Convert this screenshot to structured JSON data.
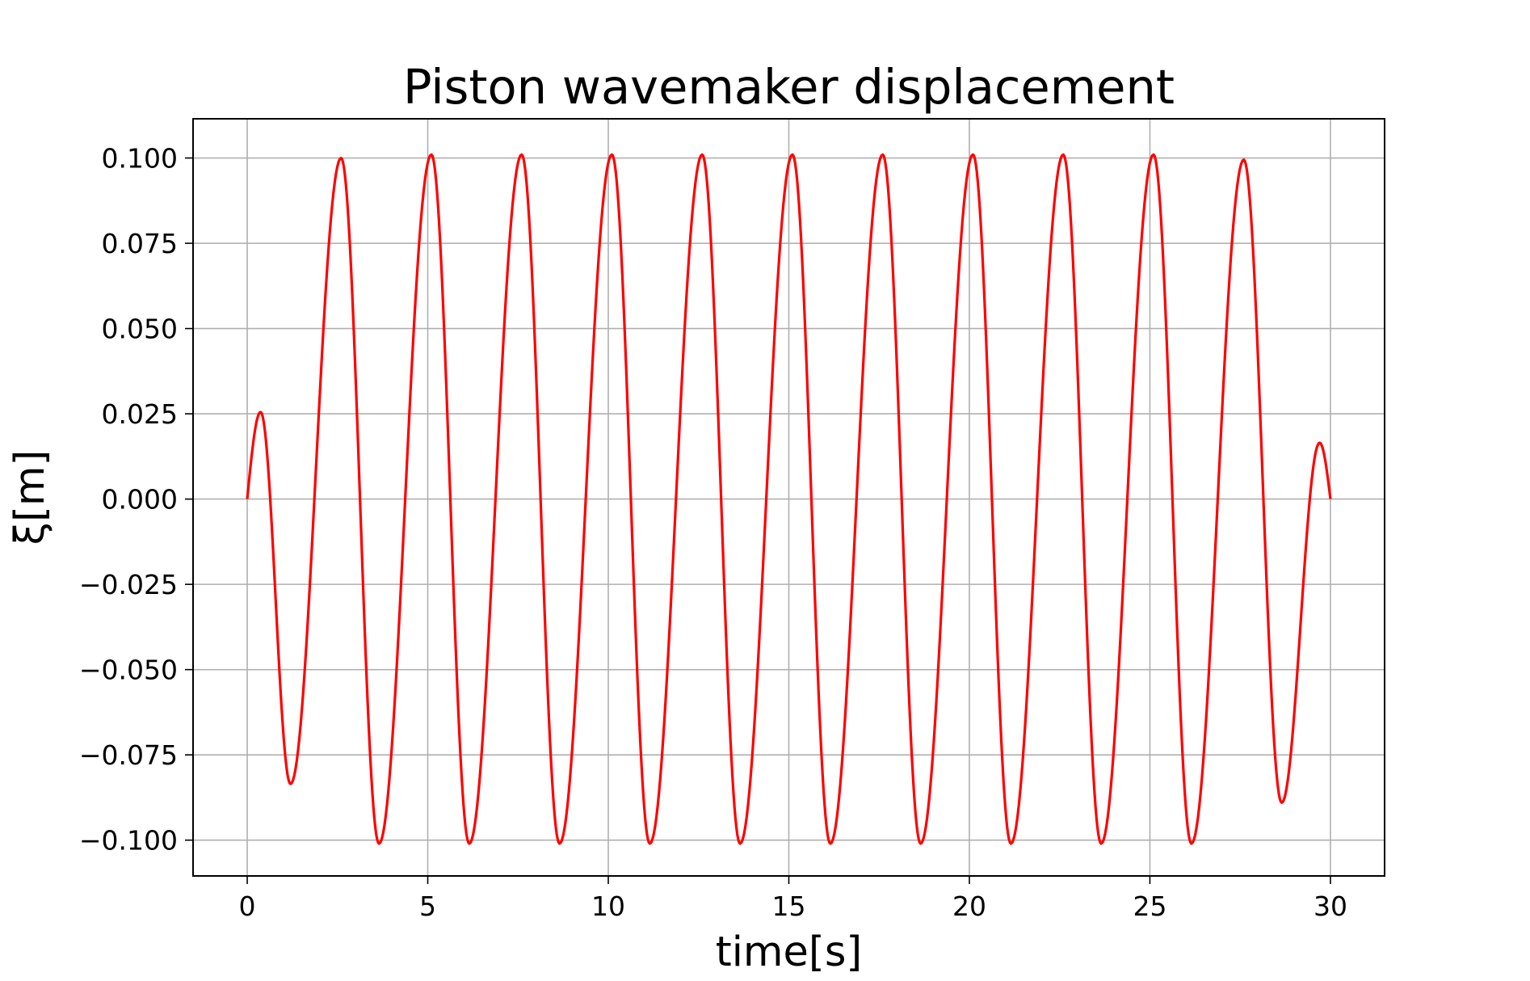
{
  "chart_data": {
    "type": "line",
    "title": "Piston wavemaker displacement",
    "xlabel": "time[s]",
    "ylabel": "ξ[m]",
    "xlim": [
      -1.5,
      31.5
    ],
    "ylim": [
      -0.1105,
      0.1115
    ],
    "grid": true,
    "x_ticks": [
      0,
      5,
      10,
      15,
      20,
      25,
      30
    ],
    "x_tick_labels": [
      "0",
      "5",
      "10",
      "15",
      "20",
      "25",
      "30"
    ],
    "y_ticks": [
      0.1,
      0.075,
      0.05,
      0.025,
      0.0,
      -0.025,
      -0.05,
      -0.075,
      -0.1
    ],
    "y_tick_labels": [
      "0.100",
      "0.075",
      "0.050",
      "0.025",
      "0.000",
      "−0.025",
      "−0.050",
      "−0.075",
      "−0.100"
    ],
    "series": [
      {
        "color": "#ff0000",
        "period_s": 2.5,
        "x_range": [
          0,
          30
        ],
        "x": [
          0,
          0.37,
          1.2,
          2.6,
          3.65,
          5.1,
          6.15,
          7.6,
          8.65,
          10.1,
          11.15,
          12.6,
          13.65,
          15.1,
          16.15,
          17.6,
          18.65,
          20.1,
          21.15,
          22.6,
          23.65,
          25.1,
          26.15,
          27.6,
          28.65,
          29.7,
          30
        ],
        "y": [
          0,
          0.0255,
          -0.0835,
          0.1,
          -0.101,
          0.101,
          -0.101,
          0.101,
          -0.101,
          0.101,
          -0.101,
          0.101,
          -0.101,
          0.101,
          -0.101,
          0.101,
          -0.101,
          0.101,
          -0.101,
          0.101,
          -0.101,
          0.101,
          -0.101,
          0.0995,
          -0.089,
          0.0165,
          0
        ]
      }
    ]
  }
}
